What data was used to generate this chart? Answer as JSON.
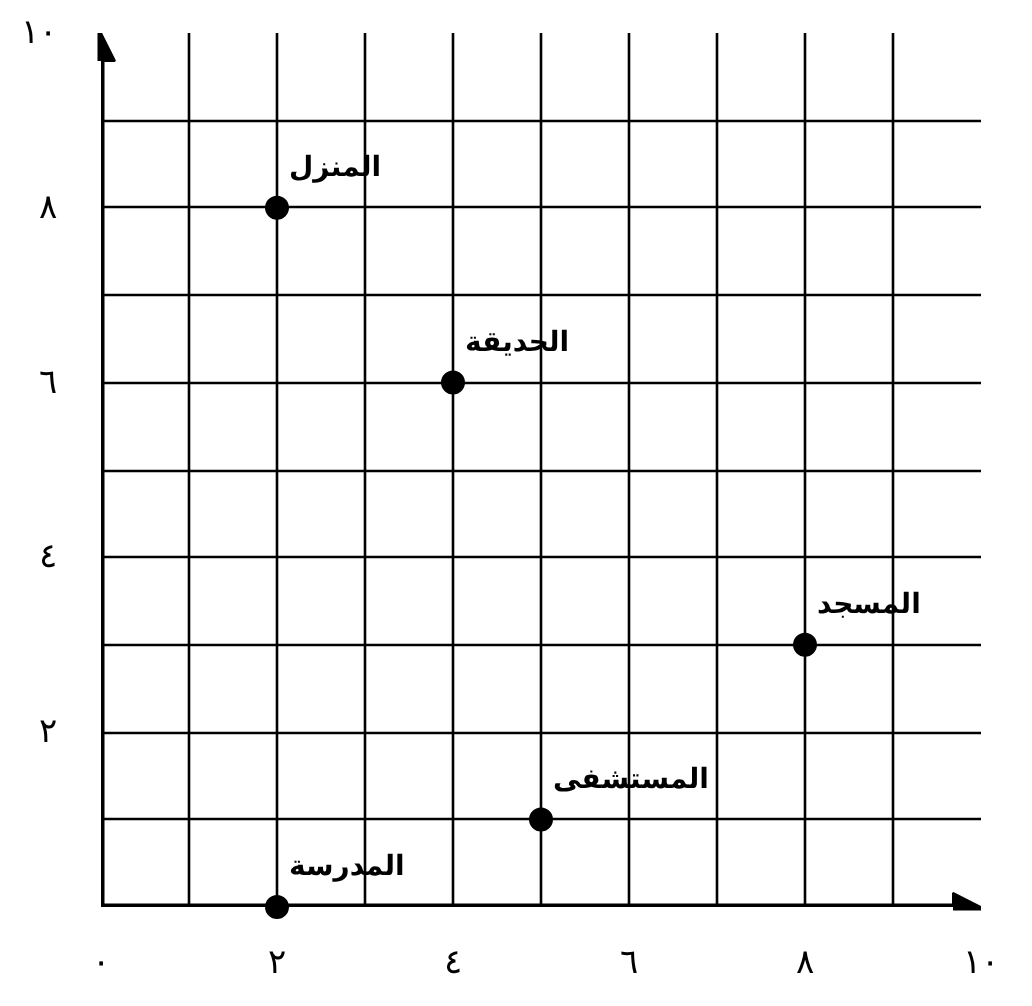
{
  "chart_data": {
    "type": "scatter",
    "x": [
      2,
      4,
      8,
      5,
      2
    ],
    "values": [
      8,
      6,
      3,
      1,
      0
    ],
    "color": "#000000",
    "marker": "circle",
    "xlim": [
      0,
      10
    ],
    "ylim": [
      0,
      10
    ],
    "xticks": [
      {
        "value": 0,
        "label": "٠"
      },
      {
        "value": 1,
        "label": null
      },
      {
        "value": 2,
        "label": "٢"
      },
      {
        "value": 3,
        "label": null
      },
      {
        "value": 4,
        "label": "٤"
      },
      {
        "value": 5,
        "label": null
      },
      {
        "value": 6,
        "label": "٦"
      },
      {
        "value": 7,
        "label": null
      },
      {
        "value": 8,
        "label": "٨"
      },
      {
        "value": 9,
        "label": null
      },
      {
        "value": 10,
        "label": "١٠"
      }
    ],
    "yticks": [
      {
        "value": 0,
        "label": null
      },
      {
        "value": 1,
        "label": null
      },
      {
        "value": 2,
        "label": "٢"
      },
      {
        "value": 3,
        "label": null
      },
      {
        "value": 4,
        "label": "٤"
      },
      {
        "value": 5,
        "label": null
      },
      {
        "value": 6,
        "label": "٦"
      },
      {
        "value": 7,
        "label": null
      },
      {
        "value": 8,
        "label": "٨"
      },
      {
        "value": 9,
        "label": null
      },
      {
        "value": 10,
        "label": "١٠"
      }
    ],
    "grid": true,
    "legend": false,
    "annotations": [
      {
        "text": "المنزل",
        "x": 2,
        "y": 8
      },
      {
        "text": "الحديقة",
        "x": 4,
        "y": 6
      },
      {
        "text": "المسجد",
        "x": 8,
        "y": 3
      },
      {
        "text": "المستشفى",
        "x": 5,
        "y": 1
      },
      {
        "text": "المدرسة",
        "x": 2,
        "y": 0
      }
    ]
  }
}
